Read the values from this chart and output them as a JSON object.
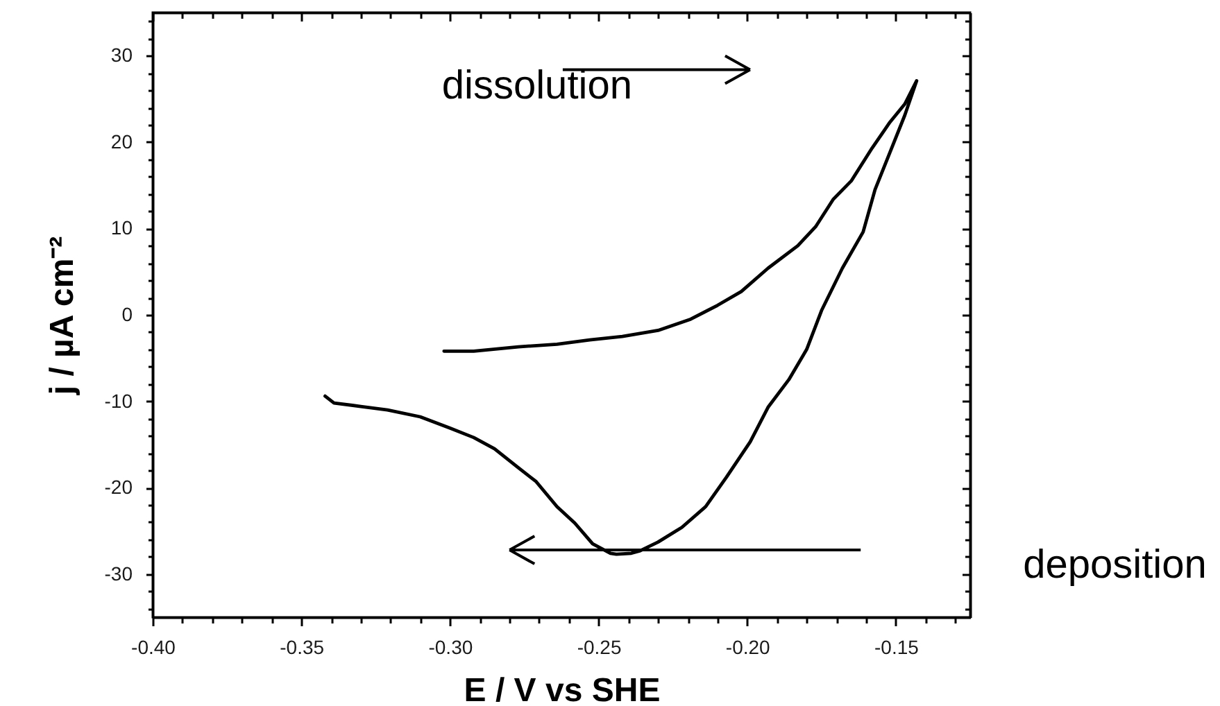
{
  "chart_data": {
    "type": "line",
    "xlabel": "E / V vs SHE",
    "ylabel": "j / µA cm⁻²",
    "annotations": [
      "dissolution",
      "deposition"
    ],
    "series": [
      {
        "color": "#000000",
        "x": [
          -0.342,
          -0.339,
          -0.33,
          -0.321,
          -0.31,
          -0.3,
          -0.292,
          -0.285,
          -0.277,
          -0.271,
          -0.264,
          -0.258,
          -0.252,
          -0.246,
          -0.244,
          -0.239,
          -0.236,
          -0.23,
          -0.222,
          -0.214,
          -0.207,
          -0.199,
          -0.193,
          -0.186,
          -0.18,
          -0.175,
          -0.168,
          -0.161,
          -0.157,
          -0.152,
          -0.147,
          -0.143,
          -0.147,
          -0.152,
          -0.158,
          -0.165,
          -0.171,
          -0.177,
          -0.183,
          -0.193,
          -0.202,
          -0.21,
          -0.219,
          -0.23,
          -0.242,
          -0.253,
          -0.264,
          -0.277,
          -0.292,
          -0.302
        ],
        "values": [
          -9.4,
          -10.2,
          -10.6,
          -11.0,
          -11.8,
          -13.1,
          -14.2,
          -15.5,
          -17.7,
          -19.3,
          -22.2,
          -24.1,
          -26.5,
          -27.6,
          -27.7,
          -27.6,
          -27.3,
          -26.3,
          -24.6,
          -22.2,
          -18.8,
          -14.7,
          -10.7,
          -7.5,
          -4.0,
          0.5,
          5.4,
          9.6,
          14.5,
          18.8,
          23.1,
          27.1,
          24.4,
          22.3,
          19.3,
          15.5,
          13.4,
          10.2,
          8.0,
          5.4,
          2.7,
          1.1,
          -0.5,
          -1.8,
          -2.5,
          -2.9,
          -3.4,
          -3.7,
          -4.2,
          -4.2
        ]
      }
    ],
    "xlim": [
      -0.4,
      -0.125
    ],
    "xticks": [
      {
        "value": -0.4,
        "label": "-0.40"
      },
      {
        "value": -0.39,
        "label": null
      },
      {
        "value": -0.38,
        "label": null
      },
      {
        "value": -0.37,
        "label": null
      },
      {
        "value": -0.36,
        "label": null
      },
      -0.35,
      {
        "value": -0.34,
        "label": null
      },
      {
        "value": -0.33,
        "label": null
      },
      {
        "value": -0.32,
        "label": null
      },
      {
        "value": -0.31,
        "label": null
      },
      {
        "value": -0.3,
        "label": "-0.30"
      },
      {
        "value": -0.29,
        "label": null
      },
      {
        "value": -0.28,
        "label": null
      },
      {
        "value": -0.27,
        "label": null
      },
      {
        "value": -0.26,
        "label": null
      },
      -0.25,
      {
        "value": -0.24,
        "label": null
      },
      {
        "value": -0.23,
        "label": null
      },
      {
        "value": -0.22,
        "label": null
      },
      {
        "value": -0.21,
        "label": null
      },
      {
        "value": -0.2,
        "label": "-0.20"
      },
      {
        "value": -0.19,
        "label": null
      },
      {
        "value": -0.18,
        "label": null
      },
      {
        "value": -0.17,
        "label": null
      },
      {
        "value": -0.16,
        "label": null
      },
      -0.15,
      {
        "value": -0.14,
        "label": null
      },
      {
        "value": -0.13,
        "label": null
      }
    ],
    "ylim": [
      -35,
      35
    ],
    "yticks": [
      {
        "value": -34,
        "label": null
      },
      {
        "value": -32,
        "label": null
      },
      -30,
      {
        "value": -28,
        "label": null
      },
      {
        "value": -26,
        "label": null
      },
      {
        "value": -24,
        "label": null
      },
      {
        "value": -22,
        "label": null
      },
      -20,
      {
        "value": -18,
        "label": null
      },
      {
        "value": -16,
        "label": null
      },
      {
        "value": -14,
        "label": null
      },
      {
        "value": -12,
        "label": null
      },
      -10,
      {
        "value": -8,
        "label": null
      },
      {
        "value": -6,
        "label": null
      },
      {
        "value": -4,
        "label": null
      },
      {
        "value": -2,
        "label": null
      },
      0,
      {
        "value": 2,
        "label": null
      },
      {
        "value": 4,
        "label": null
      },
      {
        "value": 6,
        "label": null
      },
      {
        "value": 8,
        "label": null
      },
      10,
      {
        "value": 12,
        "label": null
      },
      {
        "value": 14,
        "label": null
      },
      {
        "value": 16,
        "label": null
      },
      {
        "value": 18,
        "label": null
      },
      20,
      {
        "value": 22,
        "label": null
      },
      {
        "value": 24,
        "label": null
      },
      {
        "value": 26,
        "label": null
      },
      {
        "value": 28,
        "label": null
      },
      30,
      {
        "value": 32,
        "label": null
      },
      {
        "value": 34,
        "label": null
      }
    ],
    "grid": false,
    "marker": "none",
    "line_style": "solid"
  }
}
